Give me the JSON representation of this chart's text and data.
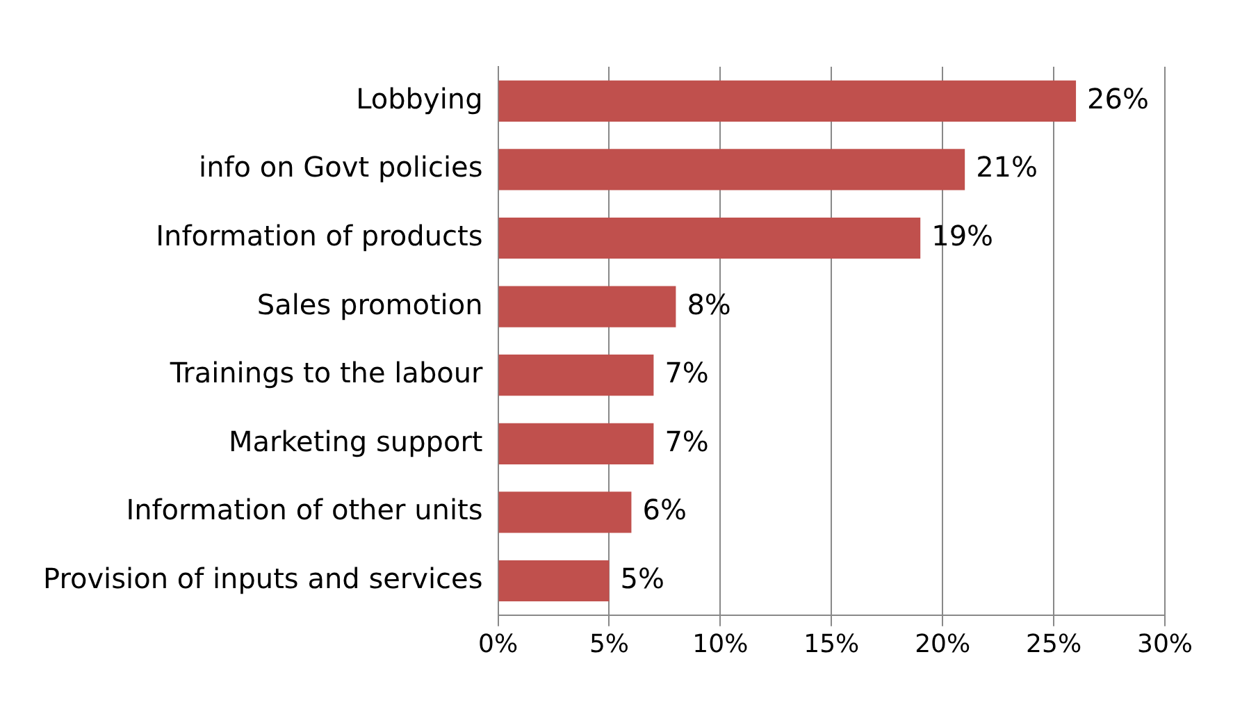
{
  "chart_data": {
    "type": "bar",
    "orientation": "horizontal",
    "categories": [
      "Lobbying",
      "info on Govt policies",
      "Information of products",
      "Sales promotion",
      "Trainings to the labour",
      "Marketing support",
      "Information of other units",
      "Provision of inputs and services"
    ],
    "values": [
      26,
      21,
      19,
      8,
      7,
      7,
      6,
      5
    ],
    "value_labels": [
      "26%",
      "21%",
      "19%",
      "8%",
      "7%",
      "7%",
      "6%",
      "5%"
    ],
    "color": "#c0504d",
    "xlim": [
      0,
      30
    ],
    "xticks": [
      {
        "value": 0,
        "label": "0%"
      },
      {
        "value": 5,
        "label": "5%"
      },
      {
        "value": 10,
        "label": "10%"
      },
      {
        "value": 15,
        "label": "15%"
      },
      {
        "value": 20,
        "label": "20%"
      },
      {
        "value": 25,
        "label": "25%"
      },
      {
        "value": 30,
        "label": "30%"
      }
    ],
    "grid": "x",
    "legend": false
  }
}
